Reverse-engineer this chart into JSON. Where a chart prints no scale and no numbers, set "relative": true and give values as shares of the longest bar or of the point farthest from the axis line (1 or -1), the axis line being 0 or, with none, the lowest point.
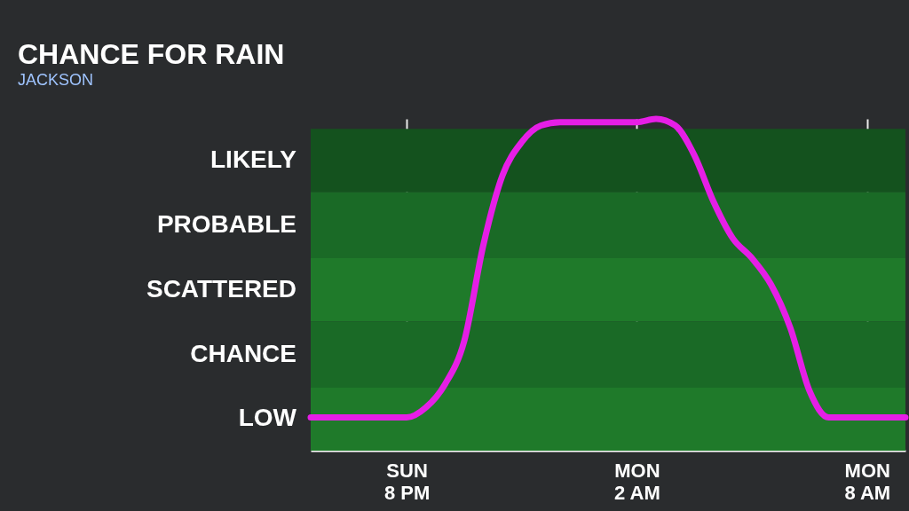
{
  "chart_data": {
    "type": "line",
    "title": "CHANCE FOR RAIN",
    "subtitle": "JACKSON",
    "relative": true,
    "categories": [
      null,
      null,
      null,
      null,
      null,
      "SUN\n8 PM",
      null,
      null,
      null,
      null,
      null,
      null,
      null,
      null,
      null,
      null,
      null,
      "MON\n2 AM",
      null,
      null,
      null,
      null,
      null,
      null,
      null,
      null,
      null,
      null,
      null,
      "MON\n8 AM",
      null,
      null
    ],
    "series": [
      {
        "color": "#e61ee6",
        "values": [
          0.1,
          0.1,
          0.1,
          0.1,
          0.1,
          0.1,
          0.13,
          0.2,
          0.33,
          0.62,
          0.83,
          0.93,
          0.98,
          0.99,
          0.99,
          0.99,
          0.99,
          0.99,
          1.0,
          0.98,
          0.89,
          0.75,
          0.64,
          0.58,
          0.5,
          0.37,
          0.18,
          0.1,
          0.1,
          0.1,
          0.1,
          0.1
        ]
      }
    ],
    "bands": [
      {
        "axis": "y",
        "from": 0,
        "to": 0.19,
        "label": "LOW",
        "color": "#1f7a2a"
      },
      {
        "axis": "y",
        "from": 0.19,
        "to": 0.39,
        "label": "CHANCE",
        "color": "#1a6a26"
      },
      {
        "axis": "y",
        "from": 0.39,
        "to": 0.58,
        "label": "SCATTERED",
        "color": "#1f7a2a"
      },
      {
        "axis": "y",
        "from": 0.58,
        "to": 0.78,
        "label": "PROBABLE",
        "color": "#1a6a26"
      },
      {
        "axis": "y",
        "from": 0.78,
        "to": 0.97,
        "label": "LIKELY",
        "color": "#14521e"
      }
    ],
    "grid": "x",
    "marker": "none",
    "line_style": "solid"
  }
}
